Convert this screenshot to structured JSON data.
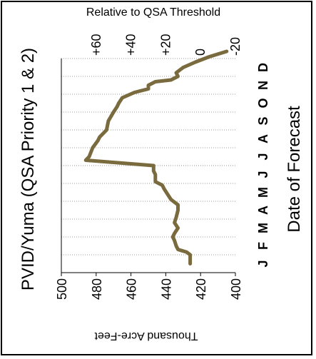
{
  "chart_data": {
    "type": "line",
    "title": "PVID/Yuma (QSA Priority 1 & 2)",
    "xlabel": "Date of Forecast",
    "ylabel": "Thousand Acre-Feet",
    "secondary_axis_label": "Relative to QSA Threshold",
    "ylim": [
      400,
      500
    ],
    "y_ticks": [
      "400",
      "420",
      "440",
      "460",
      "480",
      "500"
    ],
    "secondary_ticks": [
      "-20",
      "0",
      "+20",
      "+40",
      "+60"
    ],
    "secondary_ticks_values": [
      -20,
      0,
      20,
      40,
      60
    ],
    "qsa_threshold": 420,
    "x_ticks": [
      "J",
      "F",
      "M",
      "A",
      "M",
      "J",
      "J",
      "A",
      "S",
      "O",
      "N",
      "D"
    ],
    "grid": true,
    "colors": {
      "series": "#7a6b3f",
      "grid": "#999999"
    },
    "series": [
      {
        "x": [
          0,
          0.5,
          0.65,
          0.8,
          1.0,
          1.3,
          1.5,
          1.7,
          2.0,
          2.3,
          2.6,
          3.0,
          3.3,
          3.6,
          3.9,
          4.2,
          4.4,
          4.55,
          4.6,
          4.8,
          5.0,
          5.2,
          5.5,
          5.8,
          6.0,
          6.5,
          6.9,
          7.1,
          7.3,
          7.5,
          8.0,
          8.5,
          8.8,
          9.0,
          9.3,
          9.6,
          9.8,
          10.0,
          10.1,
          10.2,
          10.3,
          10.5,
          10.7,
          11.0,
          11.3,
          11.6,
          11.9
        ],
        "y": [
          426,
          426,
          428,
          433,
          434,
          435,
          436,
          435,
          433,
          435,
          434,
          433,
          433,
          437,
          439,
          441,
          442,
          445,
          446,
          446,
          446,
          447,
          447,
          486,
          484,
          482,
          479,
          478,
          476,
          474,
          473,
          470,
          468,
          467,
          465,
          458,
          450,
          450,
          448,
          446,
          437,
          433,
          434,
          430,
          423,
          415,
          405
        ]
      }
    ]
  }
}
